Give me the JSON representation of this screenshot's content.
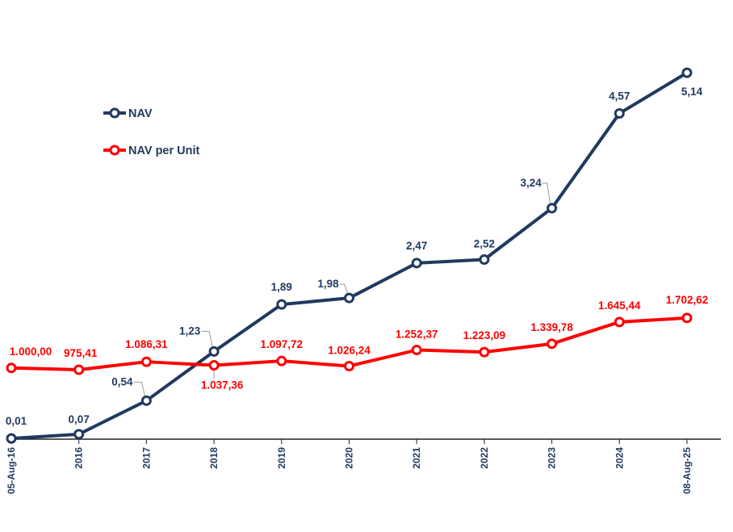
{
  "chart_data": {
    "type": "line",
    "title": "",
    "xlabel": "",
    "ylabel": "",
    "categories": [
      "05-Aug-16",
      "2016",
      "2017",
      "2018",
      "2019",
      "2020",
      "2021",
      "2022",
      "2023",
      "2024",
      "08-Aug-25"
    ],
    "grid": false,
    "legend_placement": "top-left",
    "series": [
      {
        "name": "NAV",
        "axis": "primary",
        "color": "#1f3a5f",
        "values": [
          0.01,
          0.07,
          0.54,
          1.23,
          1.89,
          1.98,
          2.47,
          2.52,
          3.24,
          4.57,
          5.14
        ],
        "labels": [
          "0,01",
          "0,07",
          "0,54",
          "1,23",
          "1,89",
          "1,98",
          "2,47",
          "2,52",
          "3,24",
          "4,57",
          "5,14"
        ]
      },
      {
        "name": "NAV per Unit",
        "axis": "secondary",
        "color": "#ff0000",
        "values": [
          1000.0,
          975.41,
          1086.31,
          1037.36,
          1097.72,
          1026.24,
          1252.37,
          1223.09,
          1339.78,
          1645.44,
          1702.62
        ],
        "labels": [
          "1.000,00",
          "975,41",
          "1.086,31",
          "1.037,36",
          "1.097,72",
          "1.026,24",
          "1.252,37",
          "1.223,09",
          "1.339,78",
          "1.645,44",
          "1.702,62"
        ]
      }
    ]
  }
}
